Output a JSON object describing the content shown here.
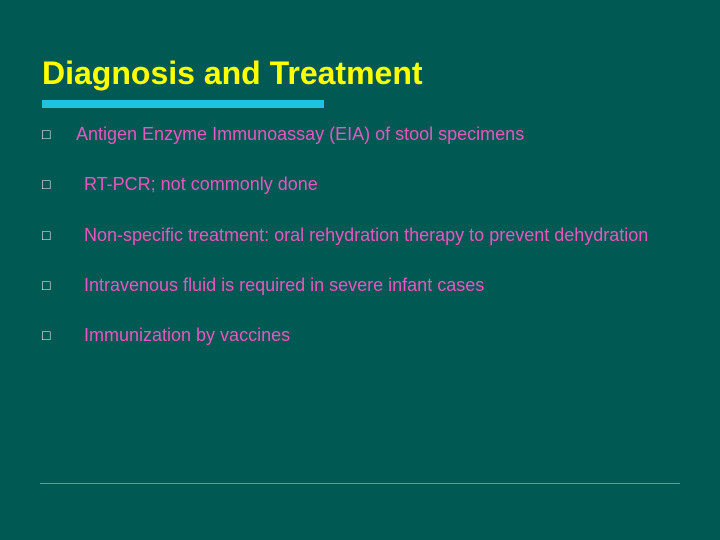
{
  "slide": {
    "background_color": "#005952",
    "title_color": "#ffff00",
    "underline_color": "#1ec3e0",
    "body_text_color": "#e856c0",
    "bullet_color": "#ffffff",
    "footer_line_color": "#8fb5b0",
    "title_fontsize": 32,
    "body_fontsize": 18,
    "title": "Diagnosis and Treatment",
    "bullets": [
      {
        "text": "Antigen Enzyme Immunoassay (EIA) of stool specimens",
        "indent": false
      },
      {
        "text": "RT-PCR; not commonly done",
        "indent": true
      },
      {
        "text": "Non-specific treatment: oral rehydration therapy to prevent dehydration",
        "indent": true
      },
      {
        "text": "Intravenous fluid is required in severe infant cases",
        "indent": true
      },
      {
        "text": "Immunization by vaccines",
        "indent": true
      }
    ],
    "bullet_glyph": "□"
  }
}
